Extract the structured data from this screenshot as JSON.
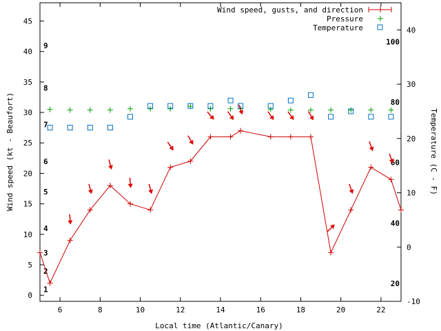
{
  "chart_data": {
    "type": "line",
    "xlabel": "Local time (Atlantic/Canary)",
    "ylabel": "Wind speed (kt - Beaufort)",
    "y2label": "Temperature (C - F)",
    "xlim": [
      5,
      23
    ],
    "ylim": [
      -1,
      48
    ],
    "y2lim": [
      -10,
      45
    ],
    "x_ticks": [
      6,
      8,
      10,
      12,
      14,
      16,
      18,
      20,
      22
    ],
    "y_ticks": [
      0,
      5,
      10,
      15,
      20,
      25,
      30,
      35,
      40,
      45
    ],
    "y2_ticks": [
      -10,
      0,
      10,
      20,
      30,
      40
    ],
    "beaufort_labels": [
      {
        "text": "1",
        "kt": 1
      },
      {
        "text": "2",
        "kt": 4
      },
      {
        "text": "3",
        "kt": 7
      },
      {
        "text": "4",
        "kt": 11
      },
      {
        "text": "5",
        "kt": 17
      },
      {
        "text": "6",
        "kt": 22
      },
      {
        "text": "7",
        "kt": 28
      },
      {
        "text": "8",
        "kt": 34
      },
      {
        "text": "9",
        "kt": 41
      }
    ],
    "fahrenheit_labels": [
      {
        "text": "20",
        "celsius": -6.7
      },
      {
        "text": "40",
        "celsius": 4.4
      },
      {
        "text": "60",
        "celsius": 15.6
      },
      {
        "text": "80",
        "celsius": 26.7
      },
      {
        "text": "100",
        "celsius": 37.8
      }
    ],
    "legend": {
      "placement": "top-right",
      "entries": [
        "Wind speed, gusts, and direction",
        "Pressure",
        "Temperature"
      ]
    },
    "colors": {
      "wind": "#cc0000",
      "direction": "#dd0000",
      "pressure": "#00a000",
      "temperature": "#0070c0",
      "axis": "#000000"
    },
    "wind_series": {
      "name": "Wind speed, gusts, and direction",
      "x": [
        5,
        5.5,
        6.5,
        7.5,
        8.5,
        9.5,
        10.5,
        11.5,
        12.5,
        13.5,
        14.5,
        15,
        16.5,
        17.5,
        18.5,
        19.5,
        20.5,
        21.5,
        22.5,
        23
      ],
      "y": [
        7,
        2,
        9,
        14,
        18,
        15,
        14,
        21,
        22,
        26,
        26,
        27,
        26,
        26,
        26,
        7,
        14,
        21,
        19,
        14
      ]
    },
    "pressure_series": {
      "name": "Pressure",
      "x": [
        5.5,
        6.5,
        7.5,
        8.5,
        9.5,
        10.5,
        11.5,
        12.5,
        13.5,
        14.5,
        15,
        16.5,
        17.5,
        18.5,
        19.5,
        20.5,
        21.5,
        22.5
      ],
      "y": [
        30.5,
        30.4,
        30.4,
        30.4,
        30.6,
        30.6,
        30.6,
        31,
        30.6,
        30.6,
        30.6,
        30.5,
        30.4,
        30.4,
        30.4,
        30.4,
        30.4,
        30.4
      ]
    },
    "temperature_series": {
      "name": "Temperature",
      "x": [
        5.5,
        6.5,
        7.5,
        8.5,
        9.5,
        10.5,
        11.5,
        12.5,
        13.5,
        14.5,
        15,
        16.5,
        17.5,
        18.5,
        19.5,
        20.5,
        21.5,
        22.5
      ],
      "y": [
        22,
        22,
        22,
        22,
        24,
        26,
        26,
        26,
        26,
        27,
        26,
        26,
        27,
        28,
        24,
        25,
        24,
        24
      ]
    },
    "direction_arrows": [
      {
        "x": 6.5,
        "kt": 12.5,
        "angle": 175
      },
      {
        "x": 7.5,
        "kt": 17.5,
        "angle": 165
      },
      {
        "x": 8.5,
        "kt": 21.5,
        "angle": 165
      },
      {
        "x": 9.5,
        "kt": 18.5,
        "angle": 175
      },
      {
        "x": 10.5,
        "kt": 17.5,
        "angle": 165
      },
      {
        "x": 11.5,
        "kt": 24.5,
        "angle": 145
      },
      {
        "x": 12.5,
        "kt": 25.5,
        "angle": 150
      },
      {
        "x": 13.5,
        "kt": 29.5,
        "angle": 140
      },
      {
        "x": 14.5,
        "kt": 29.5,
        "angle": 145
      },
      {
        "x": 15,
        "kt": 30.5,
        "angle": 160
      },
      {
        "x": 16.5,
        "kt": 29.5,
        "angle": 145
      },
      {
        "x": 17.5,
        "kt": 29.5,
        "angle": 145
      },
      {
        "x": 18.5,
        "kt": 29.5,
        "angle": 150
      },
      {
        "x": 19.5,
        "kt": 11,
        "angle": 45
      },
      {
        "x": 20.5,
        "kt": 17.5,
        "angle": 160
      },
      {
        "x": 21.5,
        "kt": 24.5,
        "angle": 160
      },
      {
        "x": 22.5,
        "kt": 22.5,
        "angle": 160
      }
    ]
  }
}
